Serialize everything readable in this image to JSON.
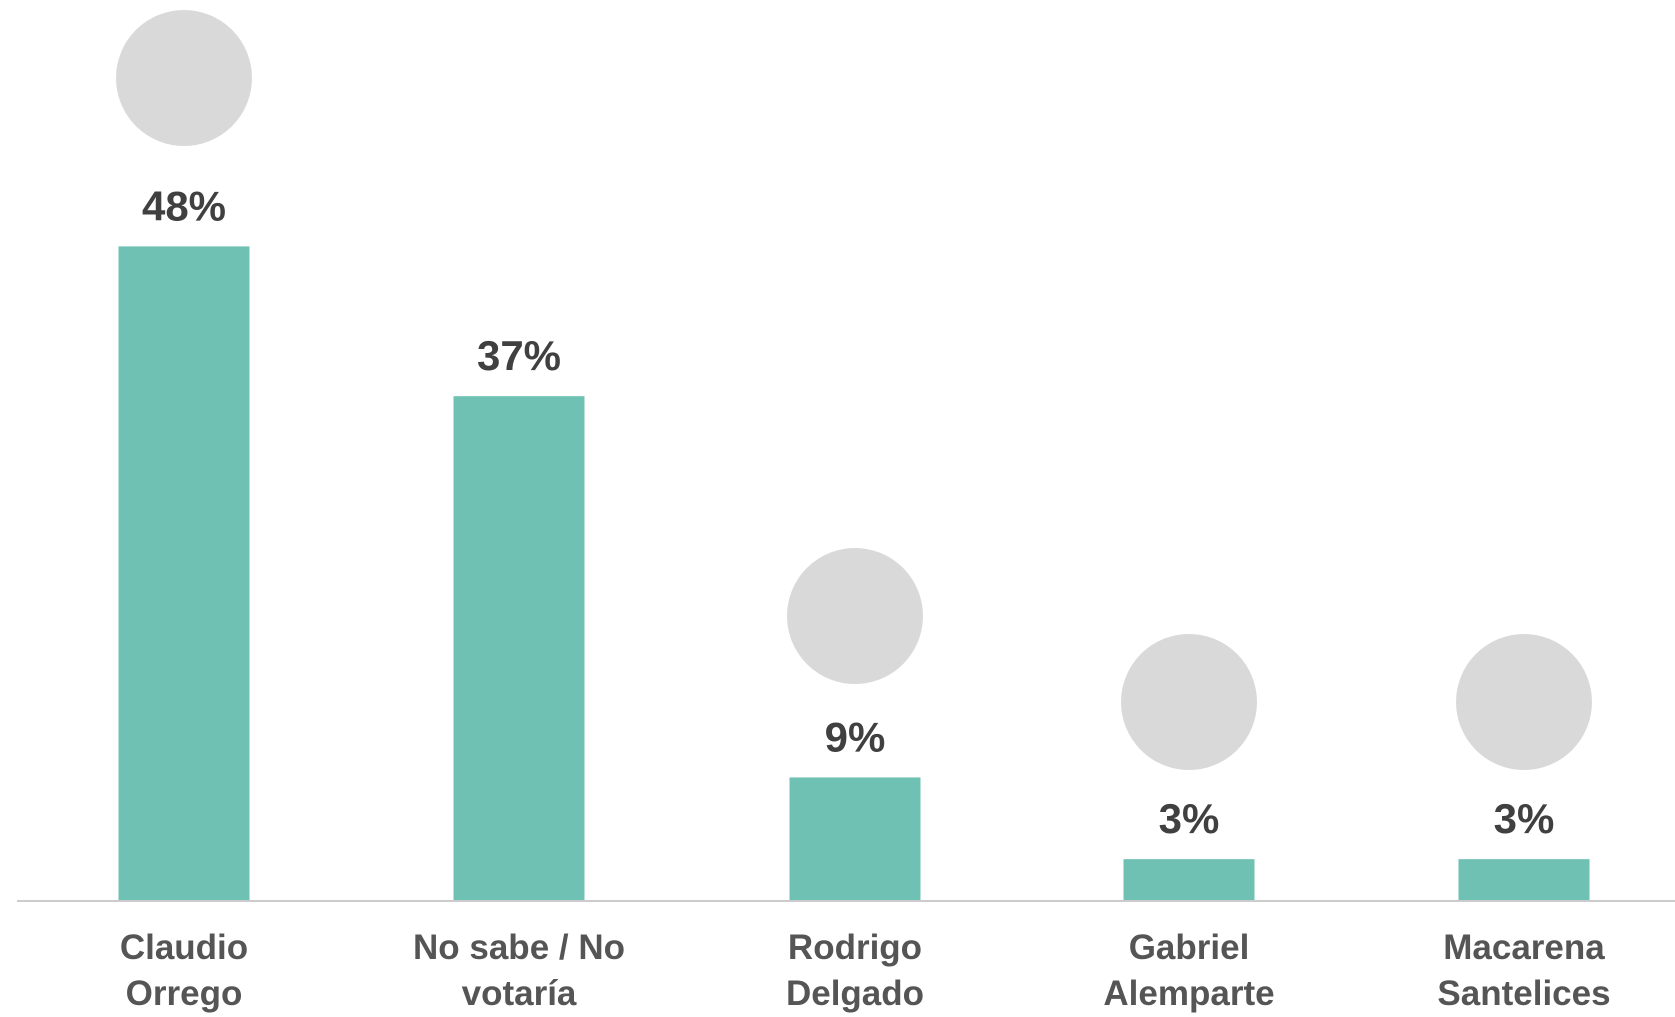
{
  "chart_data": {
    "type": "bar",
    "categories": [
      "Claudio Orrego",
      "No sabe / No votaría",
      "Rodrigo Delgado",
      "Gabriel Alemparte",
      "Macarena Santelices"
    ],
    "values": [
      48,
      37,
      9,
      3,
      3
    ],
    "value_labels": [
      "48%",
      "37%",
      "9%",
      "3%",
      "3%"
    ],
    "color": "#6fc1b3",
    "ylim": [
      0,
      60
    ]
  }
}
